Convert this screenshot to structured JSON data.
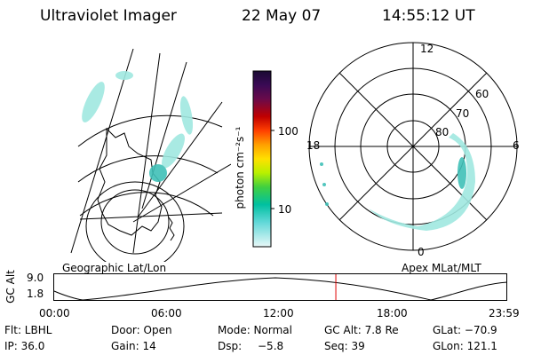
{
  "header": {
    "instrument": "Ultraviolet Imager",
    "date": "22 May 07",
    "time": "14:55:12 UT"
  },
  "left_panel": {
    "caption": "Geographic Lat/Lon"
  },
  "right_panel": {
    "caption": "Apex MLat/MLT",
    "mlt_labels": [
      "12",
      "18",
      "6",
      "0"
    ],
    "lat_labels": [
      "60",
      "70",
      "80"
    ]
  },
  "colorbar": {
    "unit": "photon cm⁻²s⁻¹",
    "ticks": [
      "100",
      "10"
    ],
    "colors": [
      "#1a0a33",
      "#3a0a55",
      "#5a0a5a",
      "#8b0030",
      "#c00000",
      "#e63000",
      "#ff7000",
      "#ffb000",
      "#ffe000",
      "#d8f000",
      "#90e800",
      "#30d040",
      "#00c0a0",
      "#40d0d0",
      "#a0e8e8",
      "#e0f6f6"
    ]
  },
  "altitude_plot": {
    "ylabel": "GC Alt",
    "y_ticks": [
      "9.0",
      "1.8"
    ],
    "x_ticks": [
      "00:00",
      "06:00",
      "12:00",
      "18:00",
      "23:59"
    ],
    "current_time_hours": 14.92,
    "marker_color": "#e00000"
  },
  "info": {
    "filter": "Flt: LBHL",
    "door": "Door: Open",
    "mode": "Mode: Normal",
    "gc_alt": "GC Alt: 7.8 Re",
    "glat": "GLat: −70.9",
    "ip": "IP: 36.0",
    "gain": "Gain: 14",
    "dsp_label": "Dsp:",
    "dsp_value": "−5.8",
    "seq": "Seq: 39",
    "glon": "GLon: 121.1"
  }
}
